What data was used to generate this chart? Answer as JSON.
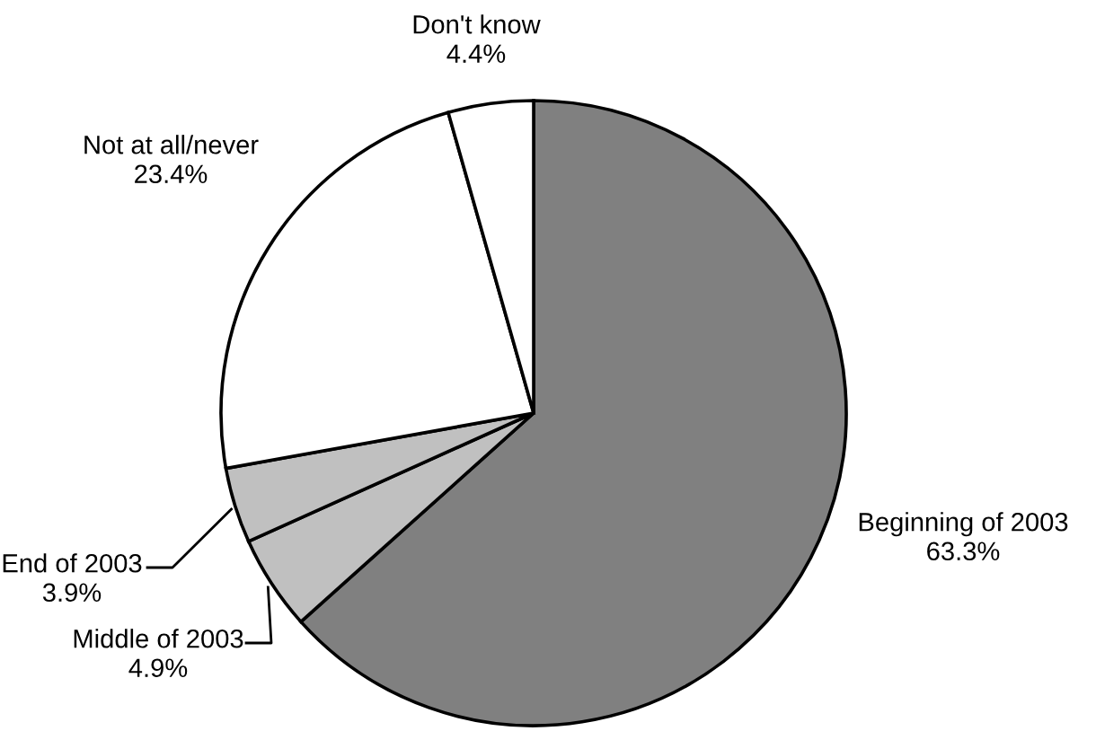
{
  "chart_data": {
    "type": "pie",
    "categories": [
      "Beginning of 2003",
      "Middle of 2003",
      "End of 2003",
      "Not at all/never",
      "Don't know"
    ],
    "values": [
      63.3,
      4.9,
      3.9,
      23.4,
      4.4
    ],
    "value_labels": [
      "63.3%",
      "4.9%",
      "3.9%",
      "23.4%",
      "4.4%"
    ],
    "colors": [
      "#808080",
      "#c0c0c0",
      "#c0c0c0",
      "#ffffff",
      "#ffffff"
    ],
    "legend": false
  }
}
